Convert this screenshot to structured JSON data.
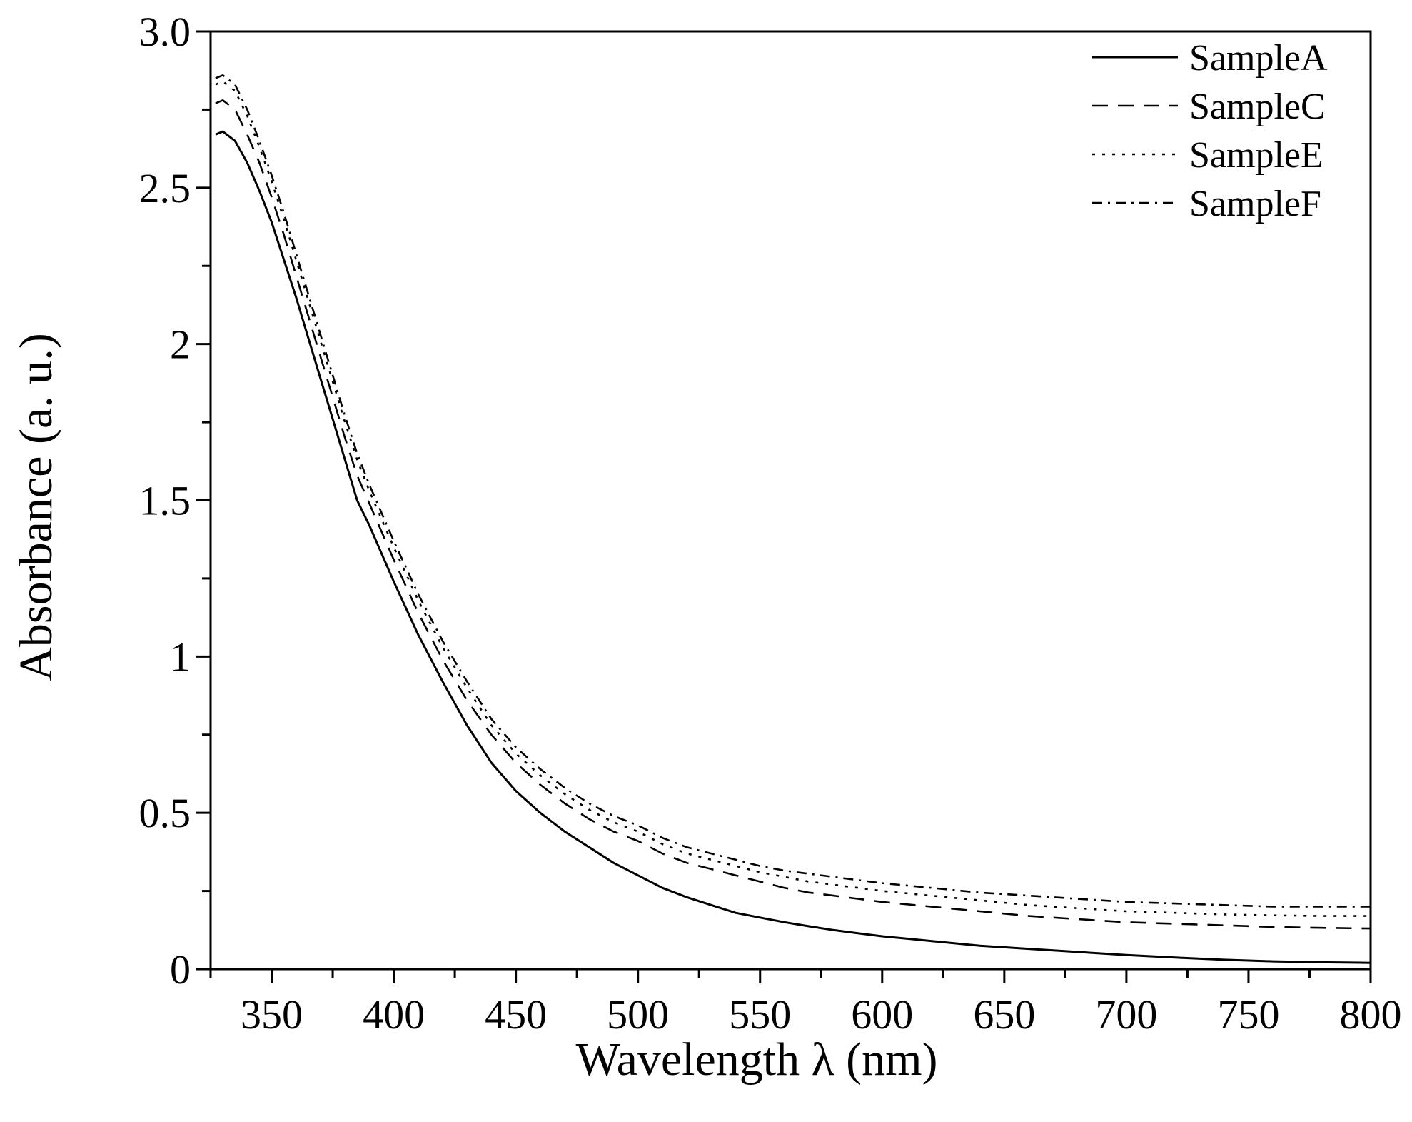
{
  "chart_data": {
    "type": "line",
    "title": "",
    "xlabel": "Wavelength λ (nm)",
    "ylabel": "Absorbance (a. u.)",
    "xlim": [
      325,
      800
    ],
    "ylim": [
      0,
      3.0
    ],
    "x_ticks": [
      350,
      400,
      450,
      500,
      550,
      600,
      650,
      700,
      750,
      800
    ],
    "y_ticks": [
      0,
      0.5,
      1,
      1.5,
      2,
      2.5,
      3.0
    ],
    "x_tick_labels": [
      "350",
      "400",
      "450",
      "500",
      "550",
      "600",
      "650",
      "700",
      "750",
      "800"
    ],
    "y_tick_labels": [
      "0",
      "0.5",
      "1",
      "1.5",
      "2",
      "2.5",
      "3.0"
    ],
    "grid": false,
    "legend_position": "top-right",
    "x": [
      327,
      330,
      335,
      340,
      345,
      350,
      355,
      360,
      365,
      370,
      375,
      380,
      385,
      390,
      400,
      410,
      420,
      430,
      440,
      450,
      460,
      470,
      480,
      490,
      500,
      510,
      520,
      530,
      540,
      550,
      560,
      570,
      580,
      590,
      600,
      620,
      640,
      660,
      680,
      700,
      720,
      740,
      760,
      780,
      800
    ],
    "series": [
      {
        "name": "SampleA",
        "dash": "solid",
        "values": [
          2.67,
          2.68,
          2.65,
          2.58,
          2.49,
          2.39,
          2.27,
          2.15,
          2.02,
          1.89,
          1.76,
          1.63,
          1.5,
          1.42,
          1.24,
          1.07,
          0.92,
          0.78,
          0.66,
          0.57,
          0.5,
          0.44,
          0.39,
          0.34,
          0.3,
          0.26,
          0.23,
          0.205,
          0.18,
          0.165,
          0.15,
          0.137,
          0.125,
          0.115,
          0.105,
          0.09,
          0.075,
          0.065,
          0.055,
          0.045,
          0.037,
          0.03,
          0.025,
          0.022,
          0.02
        ]
      },
      {
        "name": "SampleC",
        "dash": "dashed",
        "values": [
          2.77,
          2.78,
          2.75,
          2.67,
          2.58,
          2.47,
          2.35,
          2.22,
          2.09,
          1.96,
          1.83,
          1.7,
          1.58,
          1.49,
          1.31,
          1.14,
          0.99,
          0.86,
          0.75,
          0.66,
          0.59,
          0.53,
          0.48,
          0.44,
          0.41,
          0.37,
          0.34,
          0.32,
          0.3,
          0.28,
          0.26,
          0.245,
          0.235,
          0.225,
          0.215,
          0.2,
          0.185,
          0.17,
          0.16,
          0.15,
          0.145,
          0.14,
          0.135,
          0.132,
          0.13
        ]
      },
      {
        "name": "SampleE",
        "dash": "dotted",
        "values": [
          2.83,
          2.84,
          2.81,
          2.73,
          2.63,
          2.52,
          2.4,
          2.27,
          2.14,
          2.01,
          1.88,
          1.75,
          1.63,
          1.53,
          1.35,
          1.18,
          1.03,
          0.9,
          0.78,
          0.69,
          0.62,
          0.56,
          0.51,
          0.47,
          0.44,
          0.4,
          0.37,
          0.35,
          0.33,
          0.31,
          0.295,
          0.28,
          0.27,
          0.26,
          0.25,
          0.235,
          0.22,
          0.205,
          0.195,
          0.185,
          0.18,
          0.175,
          0.172,
          0.17,
          0.17
        ]
      },
      {
        "name": "SampleF",
        "dash": "dashdot",
        "values": [
          2.85,
          2.86,
          2.83,
          2.75,
          2.65,
          2.54,
          2.42,
          2.29,
          2.16,
          2.03,
          1.9,
          1.77,
          1.65,
          1.55,
          1.37,
          1.2,
          1.05,
          0.92,
          0.8,
          0.71,
          0.64,
          0.58,
          0.53,
          0.49,
          0.46,
          0.42,
          0.39,
          0.37,
          0.35,
          0.33,
          0.315,
          0.305,
          0.295,
          0.285,
          0.275,
          0.26,
          0.245,
          0.235,
          0.225,
          0.215,
          0.21,
          0.205,
          0.2,
          0.2,
          0.2
        ]
      }
    ]
  }
}
